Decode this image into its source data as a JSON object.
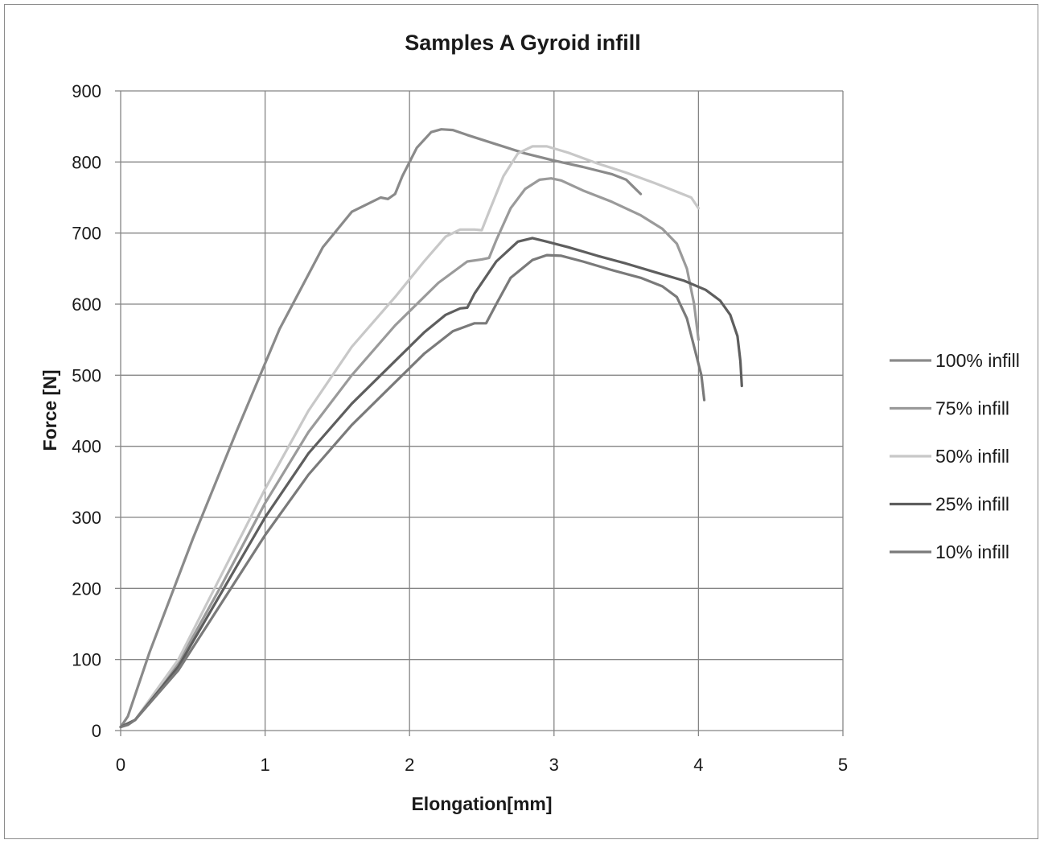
{
  "chart_data": {
    "type": "line",
    "title": "Samples A Gyroid  infill",
    "xlabel": "Elongation[mm]",
    "ylabel": "Force [N]",
    "xlim": [
      0,
      5
    ],
    "ylim": [
      0,
      900
    ],
    "xticks": [
      "0",
      "1",
      "2",
      "3",
      "4",
      "5"
    ],
    "yticks": [
      "0",
      "100",
      "200",
      "300",
      "400",
      "500",
      "600",
      "700",
      "800",
      "900"
    ],
    "grid": true,
    "legend_position": "right",
    "series": [
      {
        "name": "100% infill",
        "color": "#8a8a8a",
        "points": [
          [
            0,
            5
          ],
          [
            0.05,
            20
          ],
          [
            0.2,
            110
          ],
          [
            0.5,
            270
          ],
          [
            0.8,
            420
          ],
          [
            1.1,
            565
          ],
          [
            1.4,
            680
          ],
          [
            1.6,
            730
          ],
          [
            1.8,
            750
          ],
          [
            1.85,
            748
          ],
          [
            1.9,
            755
          ],
          [
            1.95,
            780
          ],
          [
            2.05,
            820
          ],
          [
            2.15,
            842
          ],
          [
            2.22,
            846
          ],
          [
            2.3,
            845
          ],
          [
            2.4,
            838
          ],
          [
            2.6,
            825
          ],
          [
            2.8,
            812
          ],
          [
            3.0,
            802
          ],
          [
            3.2,
            793
          ],
          [
            3.4,
            783
          ],
          [
            3.5,
            775
          ],
          [
            3.55,
            765
          ],
          [
            3.6,
            755
          ]
        ]
      },
      {
        "name": "75% infill",
        "color": "#9a9a9a",
        "points": [
          [
            0,
            5
          ],
          [
            0.1,
            15
          ],
          [
            0.4,
            95
          ],
          [
            0.7,
            205
          ],
          [
            1.0,
            320
          ],
          [
            1.3,
            420
          ],
          [
            1.6,
            500
          ],
          [
            1.9,
            570
          ],
          [
            2.2,
            630
          ],
          [
            2.4,
            660
          ],
          [
            2.5,
            663
          ],
          [
            2.55,
            665
          ],
          [
            2.6,
            690
          ],
          [
            2.7,
            735
          ],
          [
            2.8,
            762
          ],
          [
            2.9,
            775
          ],
          [
            2.98,
            777
          ],
          [
            3.05,
            774
          ],
          [
            3.2,
            760
          ],
          [
            3.4,
            744
          ],
          [
            3.6,
            725
          ],
          [
            3.75,
            706
          ],
          [
            3.85,
            685
          ],
          [
            3.92,
            650
          ],
          [
            3.97,
            600
          ],
          [
            4.0,
            550
          ]
        ]
      },
      {
        "name": "50% infill",
        "color": "#c8c8c8",
        "points": [
          [
            0,
            5
          ],
          [
            0.1,
            15
          ],
          [
            0.4,
            100
          ],
          [
            0.7,
            220
          ],
          [
            1.0,
            340
          ],
          [
            1.3,
            450
          ],
          [
            1.6,
            540
          ],
          [
            1.9,
            610
          ],
          [
            2.1,
            660
          ],
          [
            2.25,
            695
          ],
          [
            2.35,
            705
          ],
          [
            2.45,
            705
          ],
          [
            2.5,
            704
          ],
          [
            2.55,
            730
          ],
          [
            2.65,
            780
          ],
          [
            2.75,
            812
          ],
          [
            2.85,
            822
          ],
          [
            2.95,
            822
          ],
          [
            3.1,
            813
          ],
          [
            3.3,
            798
          ],
          [
            3.5,
            785
          ],
          [
            3.7,
            770
          ],
          [
            3.85,
            758
          ],
          [
            3.95,
            750
          ],
          [
            4.0,
            735
          ]
        ]
      },
      {
        "name": "25% infill",
        "color": "#5e5e5e",
        "points": [
          [
            0,
            5
          ],
          [
            0.1,
            15
          ],
          [
            0.4,
            90
          ],
          [
            0.7,
            195
          ],
          [
            1.0,
            300
          ],
          [
            1.3,
            390
          ],
          [
            1.6,
            460
          ],
          [
            1.9,
            520
          ],
          [
            2.1,
            560
          ],
          [
            2.25,
            585
          ],
          [
            2.35,
            594
          ],
          [
            2.4,
            595
          ],
          [
            2.45,
            615
          ],
          [
            2.6,
            660
          ],
          [
            2.75,
            688
          ],
          [
            2.85,
            693
          ],
          [
            2.95,
            688
          ],
          [
            3.1,
            680
          ],
          [
            3.3,
            668
          ],
          [
            3.5,
            657
          ],
          [
            3.7,
            645
          ],
          [
            3.9,
            633
          ],
          [
            4.05,
            620
          ],
          [
            4.15,
            605
          ],
          [
            4.22,
            585
          ],
          [
            4.27,
            555
          ],
          [
            4.29,
            520
          ],
          [
            4.3,
            485
          ]
        ]
      },
      {
        "name": "10% infill",
        "color": "#7a7a7a",
        "points": [
          [
            0,
            5
          ],
          [
            0.05,
            8
          ],
          [
            0.1,
            15
          ],
          [
            0.4,
            85
          ],
          [
            0.7,
            180
          ],
          [
            1.0,
            275
          ],
          [
            1.3,
            360
          ],
          [
            1.6,
            430
          ],
          [
            1.9,
            490
          ],
          [
            2.1,
            530
          ],
          [
            2.3,
            562
          ],
          [
            2.45,
            573
          ],
          [
            2.53,
            573
          ],
          [
            2.6,
            600
          ],
          [
            2.7,
            637
          ],
          [
            2.85,
            662
          ],
          [
            2.95,
            669
          ],
          [
            3.05,
            668
          ],
          [
            3.2,
            660
          ],
          [
            3.4,
            648
          ],
          [
            3.6,
            637
          ],
          [
            3.75,
            625
          ],
          [
            3.85,
            610
          ],
          [
            3.92,
            580
          ],
          [
            3.97,
            540
          ],
          [
            4.02,
            500
          ],
          [
            4.04,
            465
          ]
        ]
      }
    ]
  }
}
